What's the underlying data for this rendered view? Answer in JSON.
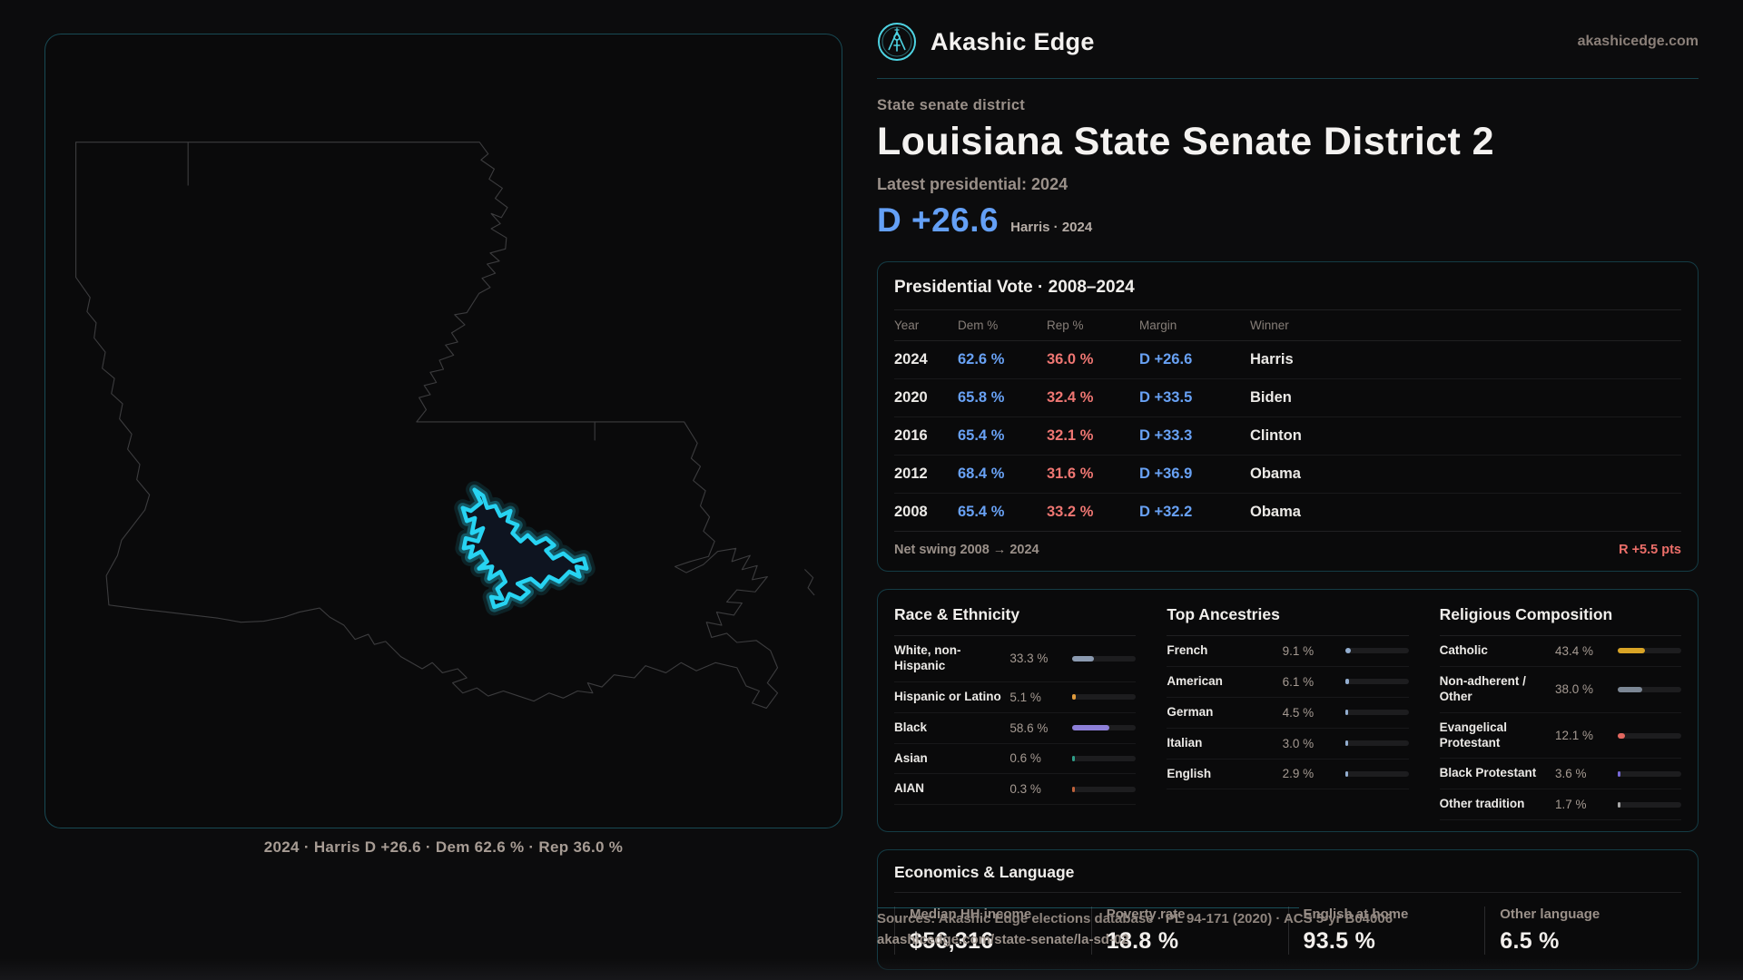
{
  "brand": {
    "name": "Akashic Edge",
    "domain": "akashicedge.com",
    "accent_teal": "#27d3f2"
  },
  "page": {
    "eyebrow": "State senate district",
    "title": "Louisiana State Senate District 2",
    "latest_label": "Latest presidential: 2024",
    "margin_big": "D +26.6",
    "margin_context": "Harris · 2024",
    "margin_color": "#64a0f6"
  },
  "map": {
    "caption": "2024 · Harris D +26.6 · Dem 62.6 % · Rep 36.0 %",
    "district_outline_color": "#27d3f2"
  },
  "presidential_table": {
    "title": "Presidential Vote · 2008–2024",
    "columns": [
      {
        "label": "Year"
      },
      {
        "label": "Dem %"
      },
      {
        "label": "Rep %"
      },
      {
        "label": "Margin"
      },
      {
        "label": "Winner"
      }
    ],
    "rows": [
      {
        "year": "2024",
        "dem": "62.6 %",
        "rep": "36.0 %",
        "margin": "D +26.6",
        "winner": "Harris"
      },
      {
        "year": "2020",
        "dem": "65.8 %",
        "rep": "32.4 %",
        "margin": "D +33.5",
        "winner": "Biden"
      },
      {
        "year": "2016",
        "dem": "65.4 %",
        "rep": "32.1 %",
        "margin": "D +33.3",
        "winner": "Clinton"
      },
      {
        "year": "2012",
        "dem": "68.4 %",
        "rep": "31.6 %",
        "margin": "D +36.9",
        "winner": "Obama"
      },
      {
        "year": "2008",
        "dem": "65.4 %",
        "rep": "33.2 %",
        "margin": "D +32.2",
        "winner": "Obama"
      }
    ],
    "dem_color": "#68a1f4",
    "rep_color": "#ee7672",
    "net_swing_label": "Net swing 2008 → 2024",
    "net_swing_value": "R +5.5 pts",
    "net_swing_color": "#ee6f6a"
  },
  "demographics": {
    "race": {
      "title": "Race & Ethnicity",
      "rows": [
        {
          "label": "White, non-Hispanic",
          "value": "33.3 %",
          "pct": 33.3,
          "color": "#8b9ab0"
        },
        {
          "label": "Hispanic or Latino",
          "value": "5.1 %",
          "pct": 5.1,
          "color": "#e09b3d"
        },
        {
          "label": "Black",
          "value": "58.6 %",
          "pct": 58.6,
          "color": "#8d7fd8"
        },
        {
          "label": "Asian",
          "value": "0.6 %",
          "pct": 0.6,
          "color": "#2f9e89"
        },
        {
          "label": "AIAN",
          "value": "0.3 %",
          "pct": 0.3,
          "color": "#c0623b"
        }
      ]
    },
    "ancestries": {
      "title": "Top Ancestries",
      "rows": [
        {
          "label": "French",
          "value": "9.1 %",
          "pct": 9.1,
          "color": "#93aed0"
        },
        {
          "label": "American",
          "value": "6.1 %",
          "pct": 6.1,
          "color": "#93aed0"
        },
        {
          "label": "German",
          "value": "4.5 %",
          "pct": 4.5,
          "color": "#93aed0"
        },
        {
          "label": "Italian",
          "value": "3.0 %",
          "pct": 3.0,
          "color": "#93aed0"
        },
        {
          "label": "English",
          "value": "2.9 %",
          "pct": 2.9,
          "color": "#93aed0"
        }
      ]
    },
    "religion": {
      "title": "Religious Composition",
      "rows": [
        {
          "label": "Catholic",
          "value": "43.4 %",
          "pct": 43.4,
          "color": "#d9a426"
        },
        {
          "label": "Non-adherent / Other",
          "value": "38.0 %",
          "pct": 38.0,
          "color": "#7c8795"
        },
        {
          "label": "Evangelical Protestant",
          "value": "12.1 %",
          "pct": 12.1,
          "color": "#e2675f"
        },
        {
          "label": "Black Protestant",
          "value": "3.6 %",
          "pct": 3.6,
          "color": "#7668d6"
        },
        {
          "label": "Other tradition",
          "value": "1.7 %",
          "pct": 1.7,
          "color": "#a8a8a8"
        }
      ]
    }
  },
  "economics": {
    "title": "Economics & Language",
    "stats": [
      {
        "label": "Median HH income",
        "value": "$56,316"
      },
      {
        "label": "Poverty rate",
        "value": "18.8 %"
      },
      {
        "label": "English at home",
        "value": "93.5 %"
      },
      {
        "label": "Other language",
        "value": "6.5 %"
      }
    ]
  },
  "footer": {
    "sources": "Sources: Akashic Edge elections database · PL 94-171 (2020) · ACS 5-yr B04006",
    "permalink": "akashicedge.com/state-senate/la-sd-02"
  }
}
